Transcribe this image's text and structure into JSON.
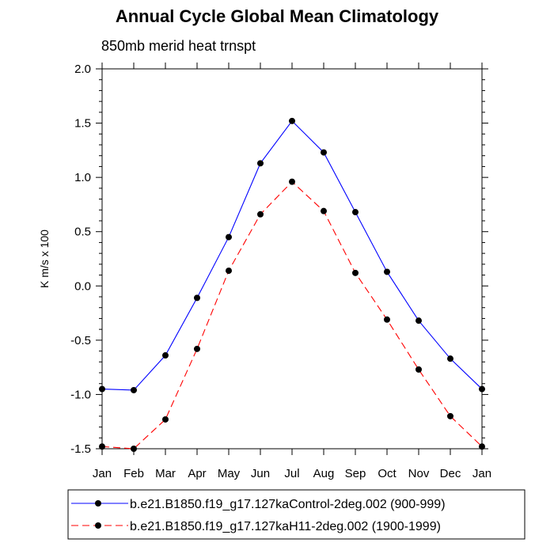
{
  "chart_data": {
    "type": "line",
    "title": "Annual Cycle Global Mean Climatology",
    "subtitle": "850mb merid heat trnspt",
    "xlabel": "",
    "ylabel": "K m/s x 100",
    "categories": [
      "Jan",
      "Feb",
      "Mar",
      "Apr",
      "May",
      "Jun",
      "Jul",
      "Aug",
      "Sep",
      "Oct",
      "Nov",
      "Dec",
      "Jan"
    ],
    "ylim": [
      -1.5,
      2.0
    ],
    "yticks": [
      -1.5,
      -1.0,
      -0.5,
      0.0,
      0.5,
      1.0,
      1.5,
      2.0
    ],
    "ytick_labels": [
      "-1.5",
      "-1.0",
      "-0.5",
      "0.0",
      "0.5",
      "1.0",
      "1.5",
      "2.0"
    ],
    "series": [
      {
        "name": "b.e21.B1850.f19_g17.127kaControl-2deg.002 (900-999)",
        "color": "#0000ff",
        "dash": "solid",
        "values": [
          -0.95,
          -0.96,
          -0.64,
          -0.11,
          0.45,
          1.13,
          1.52,
          1.23,
          0.68,
          0.13,
          -0.32,
          -0.67,
          -0.95
        ]
      },
      {
        "name": "b.e21.B1850.f19_g17.127kaH11-2deg.002 (1900-1999)",
        "color": "#ff0000",
        "dash": "dashed",
        "values": [
          -1.48,
          -1.5,
          -1.23,
          -0.58,
          0.14,
          0.66,
          0.96,
          0.69,
          0.12,
          -0.31,
          -0.77,
          -1.2,
          -1.48
        ]
      }
    ],
    "marker_color": "#000000",
    "grid": false,
    "legend_position": "bottom"
  }
}
